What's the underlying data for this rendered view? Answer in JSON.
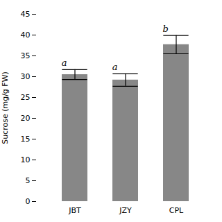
{
  "chart_data": {
    "type": "bar",
    "categories": [
      "JBT",
      "JZY",
      "CPL"
    ],
    "values": [
      30.5,
      29.2,
      37.7
    ],
    "errors": [
      1.2,
      1.5,
      2.2
    ],
    "annotations": [
      "a",
      "a",
      "b"
    ],
    "color": "#878787",
    "ylabel": "Sucrose (mg/g FW)",
    "ylim": [
      0,
      45
    ],
    "yticks": [
      0,
      5,
      10,
      15,
      20,
      25,
      30,
      35,
      40,
      45
    ],
    "grid": false
  }
}
